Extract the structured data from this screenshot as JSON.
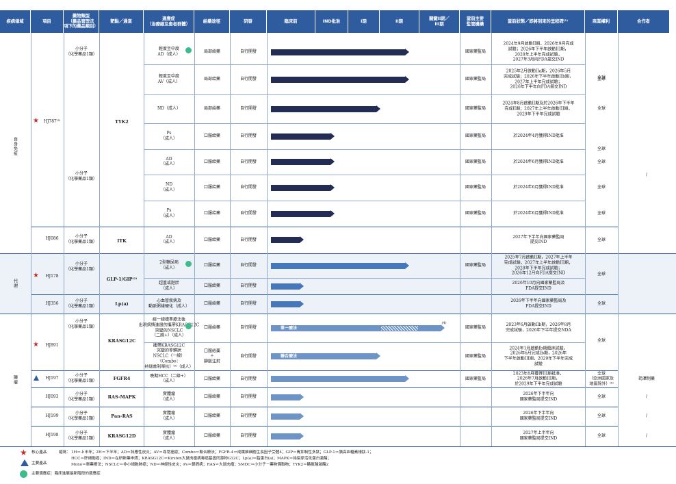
{
  "headers": [
    "疾病領域",
    "項目",
    "藥物類型\n（藥品管理法\n項下的藥品類別）",
    "靶點／通道",
    "適應症\n（治療線及患者群體）",
    "給藥途徑",
    "研發",
    "臨床前",
    "IND批准",
    "I期",
    "II期",
    "關鍵II期／\nIII期",
    "當前主要\n監管機構",
    "當前狀態／即將到來的里程碑⁽¹⁾",
    "商業權利",
    "合作者"
  ],
  "areas": {
    "autoimmune": "自身免疫",
    "metabolic": "代謝",
    "oncology": "腫瘤"
  },
  "colors": {
    "header": "#2E5C9F",
    "bar_dark": "#232C53",
    "bar_mid": "#4677BB",
    "bar_light": "#6E93C6",
    "star": "#C0302A",
    "triangle": "#2E5C9F",
    "green_dot": "#3DBB8B",
    "band": "#EDF2F9"
  },
  "rows": [
    {
      "project": "HJ787⁽³⁾",
      "mark": "star",
      "drug_type": "小分子\n（化學藥品1類）",
      "target": "TYK2",
      "indication": "輕度至中度\nAD（成人）",
      "green": true,
      "route": "局部給藥",
      "rd": "自行開發",
      "stage": "phase2",
      "regulator": "國家藥監局",
      "status": "2024年9月啟動II期，2026年9月完成\n試驗；2026年下半年啟動III期，\n2028年上半年完成試驗，\n2027年3月向FDA提交IND",
      "rights": "全球",
      "partner": ""
    },
    {
      "project": "",
      "mark": "",
      "drug_type": "",
      "target": "",
      "indication": "輕度至中度\nAV（成人）",
      "green": false,
      "route": "局部給藥",
      "rd": "自行開發",
      "stage": "phase2",
      "regulator": "國家藥監局",
      "status": "2025年2月啟動IIa期，2026年5月\n完成試驗；2026年下半年啟動IIb期，\n2027年上半年完成試驗；\n2026年下半年向FDA提交IND",
      "rights": "全球",
      "partner": ""
    },
    {
      "project": "",
      "mark": "",
      "drug_type": "",
      "target": "",
      "indication": "ND（成人）",
      "green": false,
      "route": "局部給藥",
      "rd": "自行開發",
      "stage": "phase1_5",
      "regulator": "國家藥監局",
      "status": "2024年8月啟動II期及於2026年下半年\n完成II期；2027年上半年啟動III期，\n2029年下半年完成試驗",
      "rights": "全球",
      "partner": ""
    },
    {
      "project": "",
      "mark": "",
      "drug_type": "小分子\n（化學藥品1類）",
      "target": "",
      "indication": "Ps\n（成人）",
      "green": false,
      "route": "口服給藥",
      "rd": "自行開發",
      "stage": "ind",
      "regulator": "國家藥監局",
      "status": "於2024年4月獲得IND批准",
      "rights": "全球",
      "partner": ""
    },
    {
      "project": "",
      "mark": "",
      "drug_type": "",
      "target": "",
      "indication": "AD\n（成人）",
      "green": false,
      "route": "口服給藥",
      "rd": "自行開發",
      "stage": "ind",
      "regulator": "國家藥監局",
      "status": "於2024年6月獲得IND批准",
      "rights": "全球",
      "partner": ""
    },
    {
      "project": "",
      "mark": "",
      "drug_type": "",
      "target": "",
      "indication": "ND\n（成人）",
      "green": false,
      "route": "口服給藥",
      "rd": "自行開發",
      "stage": "ind",
      "regulator": "國家藥監局",
      "status": "於2024年6月獲得IND批准",
      "rights": "全球",
      "partner": ""
    },
    {
      "project": "",
      "mark": "",
      "drug_type": "",
      "target": "",
      "indication": "Ps\n（成人）",
      "green": false,
      "route": "口服給藥",
      "rd": "自行開發",
      "stage": "ind",
      "regulator": "國家藥監局",
      "status": "於2024年6月獲得IND批准",
      "rights": "全球",
      "partner": ""
    },
    {
      "project": "HJ086",
      "mark": "",
      "drug_type": "小分子\n（化學藥品1類）",
      "target": "ITK",
      "indication": "AD\n（成人）",
      "green": false,
      "route": "口服給藥",
      "rd": "自行開發",
      "stage": "preclinical",
      "regulator": "",
      "status": "2027年下半年向國家藥監局\n提交IND",
      "rights": "全球",
      "partner": ""
    },
    {
      "project": "HJ178",
      "mark": "star",
      "drug_type": "小分子\n（化學藥品1類）",
      "target": "GLP-1/GIP⁽²⁾",
      "indication": "2型糖尿病\n（成人）",
      "green": true,
      "route": "口服給藥",
      "rd": "自行開發",
      "stage": "phase2",
      "regulator": "國家藥監局",
      "status": "2025年7月啟動II期，2027年上半年\n完成試驗，2027年上半年啟動III期，\n2028年下半年完成試驗；\n2026年12月向FDA提交IND",
      "rights": "全球",
      "partner": ""
    },
    {
      "project": "",
      "mark": "",
      "drug_type": "",
      "target": "",
      "indication": "超重或肥胖\n（成人）",
      "green": false,
      "route": "口服給藥",
      "rd": "自行開發",
      "stage": "preclinical",
      "regulator": "",
      "status": "2026年10月向國家藥監局及\nFDA提交IND",
      "rights": "",
      "partner": ""
    },
    {
      "project": "HJ356",
      "mark": "",
      "drug_type": "小分子\n（化學藥品1類）",
      "target": "Lp(a)",
      "indication": "心血管疾病及\n動脈粥樣硬化（成人）",
      "green": false,
      "route": "口服給藥",
      "rd": "自行開發",
      "stage": "preclinical",
      "regulator": "",
      "status": "2026年下半年向國家藥監局及\nFDA提交IND",
      "rights": "全球",
      "partner": ""
    },
    {
      "project": "HJ891",
      "mark": "star",
      "drug_type": "小分子\n（化學藥品1類）",
      "target": "KRASG12C",
      "indication": "經一線標準療法後\n出現病情進展的攜帶KRASG12C\n突變的NSCLC\n（二線+）（成人）",
      "green": true,
      "route": "口服給藥",
      "rd": "自行開發",
      "stage": "pivotal",
      "bar_text": "單一療法",
      "note": "(4)",
      "regulator": "國家藥監局",
      "status": "2023年6月啟動IIb期，2026年8月\n完成試驗，2026年下半年提交NDA",
      "rights": "全球",
      "partner": ""
    },
    {
      "project": "",
      "mark": "",
      "drug_type": "",
      "target": "",
      "indication": "攜帶KRASG12C\n突變的非鱗狀\nNSCLC（一線）\n（Combo：\n持瑞普利單抗）⁽⁵⁾（成人）",
      "green": false,
      "route": "口服給藥\n＋\n靜脈注射",
      "rd": "自行開發",
      "stage": "phase1_5",
      "bar_text": "聯合療法",
      "regulator": "國家藥監局",
      "status": "2024年1月啟動Ib期臨床試驗，\n2026年6月完成Ib期，2026年\n下半年啟動III期，2029年下半年完成\n試驗",
      "rights": "",
      "partner": ""
    },
    {
      "project": "HJ197",
      "mark": "triangle",
      "drug_type": "小分子\n（化學藥品1類）",
      "target": "FGFR4",
      "indication": "晚期HCC（二線+）\n（成人）",
      "green": false,
      "route": "口服給藥",
      "rd": "自行開發",
      "stage": "phase2",
      "regulator": "國家藥監局",
      "status": "2023年8月獲得III期批准，\n2026年7月啟動III期，\n於2029年下半年完成試驗",
      "rights": "全球\n（亞洲國家及\n地區除外）⁽⁶⁾",
      "partner": "筠澤制藥"
    },
    {
      "project": "HJ093",
      "mark": "",
      "drug_type": "小分子\n（化學藥品1類）",
      "target": "RAS-MAPK",
      "indication": "實體瘤\n（成人）",
      "green": false,
      "route": "口服給藥",
      "rd": "自行開發",
      "stage": "preclinical",
      "regulator": "",
      "status": "2026年下半年向\n國家藥監局提交IND",
      "rights": "全球",
      "partner": "/"
    },
    {
      "project": "HJ199",
      "mark": "",
      "drug_type": "小分子\n（化學藥品1類）",
      "target": "Pan-RAS",
      "indication": "實體瘤\n（成人）",
      "green": false,
      "route": "口服給藥",
      "rd": "自行開發",
      "stage": "preclinical",
      "regulator": "",
      "status": "2026年下半年向\n國家藥監局提交IND",
      "rights": "全球",
      "partner": "/"
    },
    {
      "project": "HJ198",
      "mark": "",
      "drug_type": "小分子\n（化學藥品1類）",
      "target": "KRASG12D",
      "indication": "實體瘤\n（成人）",
      "green": false,
      "route": "口服給藥",
      "rd": "自行開發",
      "stage": "preclinical",
      "regulator": "",
      "status": "2027年上半年向\n國家藥監局提交IND",
      "rights": "全球",
      "partner": "/"
    }
  ],
  "autoimmune_partner": "/",
  "legend": {
    "core": "核心產品",
    "main": "主要產品",
    "green": "主要適應症：臨床進展最新階段的適應症",
    "abbr_label": "縮寫：",
    "abbr1": "1H＝上半年；2H＝下半年；AD＝特應性皮炎；AV＝尋常痤瘡；Combo＝聯合療法；FGFR-4＝成纖維細胞生長因子受體4；GIP＝胃抑制性多肽；GLP-1＝胰高血糖素樣肽-1；",
    "abbr2": "HCC＝肝細胞癌；IND＝在研新藥申請；KRASG12C＝Kirsten大鼠肉瘤病毒癌基因同源物G12C；Lp(a)＝脂蛋白(a)；MAPK＝絲裂原活化蛋白激酶；",
    "abbr3": "Mono＝單藥療法；NSCLC＝非小細胞肺癌；ND＝神經性皮炎；Ps＝銀屑病；RAS＝大鼠肉瘤；SMDC＝小分子－藥物偶聯物；TYK2＝酪氨酸激酶2"
  }
}
